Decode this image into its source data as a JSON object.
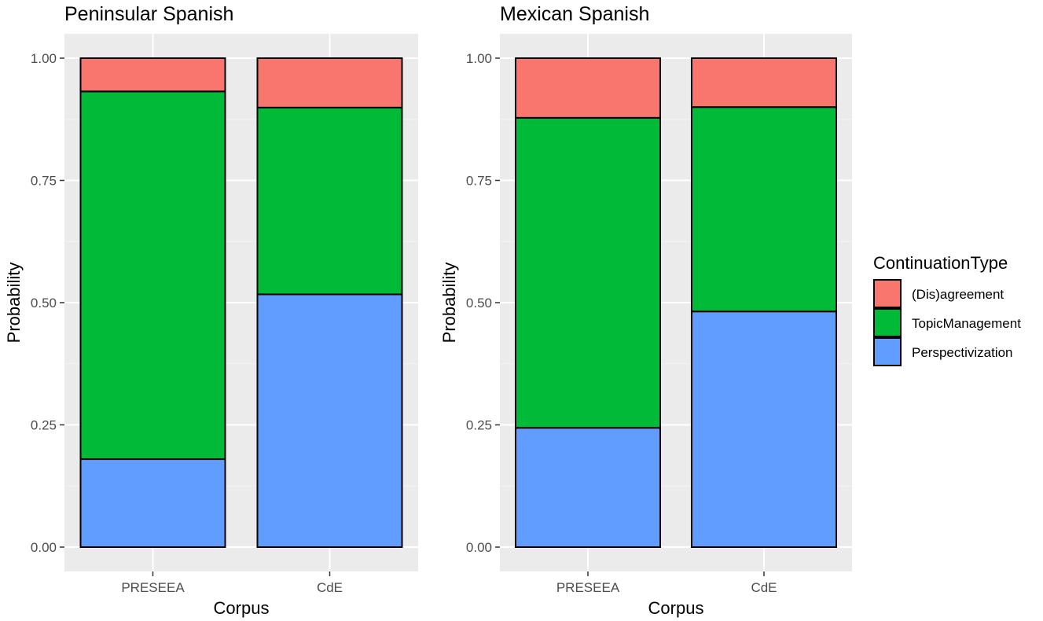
{
  "chart_data": {
    "type": "bar",
    "stacked": true,
    "normalized": true,
    "ylim": [
      0,
      1
    ],
    "yticks": [
      "0.00",
      "0.25",
      "0.50",
      "0.75",
      "1.00"
    ],
    "xlabel": "Corpus",
    "ylabel": "Probability",
    "grid": true,
    "legend": {
      "title": "ContinuationType",
      "position": "right",
      "entries": [
        {
          "name": "(Dis)agreement",
          "color": "#F8766D"
        },
        {
          "name": "TopicManagement",
          "color": "#00BA38"
        },
        {
          "name": "Perspectivization",
          "color": "#619CFF"
        }
      ]
    },
    "panels": [
      {
        "title": "Peninsular Spanish",
        "categories": [
          "PRESEEA",
          "CdE"
        ],
        "series": [
          {
            "name": "Perspectivization",
            "values": [
              0.18,
              0.517
            ]
          },
          {
            "name": "TopicManagement",
            "values": [
              0.752,
              0.382
            ]
          },
          {
            "name": "(Dis)agreement",
            "values": [
              0.068,
              0.101
            ]
          }
        ]
      },
      {
        "title": "Mexican Spanish",
        "categories": [
          "PRESEEA",
          "CdE"
        ],
        "series": [
          {
            "name": "Perspectivization",
            "values": [
              0.244,
              0.482
            ]
          },
          {
            "name": "TopicManagement",
            "values": [
              0.634,
              0.418
            ]
          },
          {
            "name": "(Dis)agreement",
            "values": [
              0.122,
              0.1
            ]
          }
        ]
      }
    ]
  }
}
